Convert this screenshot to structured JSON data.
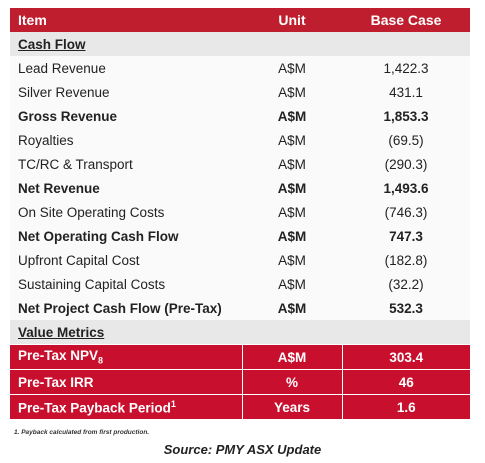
{
  "header": {
    "item": "Item",
    "unit": "Unit",
    "base": "Base Case"
  },
  "cash_flow": {
    "title": "Cash Flow",
    "rows": [
      {
        "label": "Lead Revenue",
        "unit": "A$M",
        "value": "1,422.3",
        "bold": false
      },
      {
        "label": "Silver Revenue",
        "unit": "A$M",
        "value": "431.1",
        "bold": false
      },
      {
        "label": "Gross Revenue",
        "unit": "A$M",
        "value": "1,853.3",
        "bold": true
      },
      {
        "label": "Royalties",
        "unit": "A$M",
        "value": "(69.5)",
        "bold": false
      },
      {
        "label": "TC/RC & Transport",
        "unit": "A$M",
        "value": "(290.3)",
        "bold": false
      },
      {
        "label": "Net Revenue",
        "unit": "A$M",
        "value": "1,493.6",
        "bold": true
      },
      {
        "label": "On Site Operating Costs",
        "unit": "A$M",
        "value": "(746.3)",
        "bold": false
      },
      {
        "label": "Net Operating Cash Flow",
        "unit": "A$M",
        "value": "747.3",
        "bold": true
      },
      {
        "label": "Upfront Capital Cost",
        "unit": "A$M",
        "value": "(182.8)",
        "bold": false
      },
      {
        "label": "Sustaining Capital Costs",
        "unit": "A$M",
        "value": "(32.2)",
        "bold": false
      },
      {
        "label": "Net Project Cash Flow (Pre-Tax)",
        "unit": "A$M",
        "value": "532.3",
        "bold": true
      }
    ]
  },
  "value_metrics": {
    "title": "Value Metrics",
    "rows": [
      {
        "label": "Pre-Tax NPV",
        "sub": "8",
        "unit": "A$M",
        "value": "303.4"
      },
      {
        "label": "Pre-Tax IRR",
        "unit": "%",
        "value": "46"
      },
      {
        "label": "Pre-Tax Payback Period",
        "sup": "1",
        "unit": "Years",
        "value": "1.6"
      }
    ]
  },
  "footnote": "1. Payback calculated from first production.",
  "source": "Source: PMY ASX Update"
}
